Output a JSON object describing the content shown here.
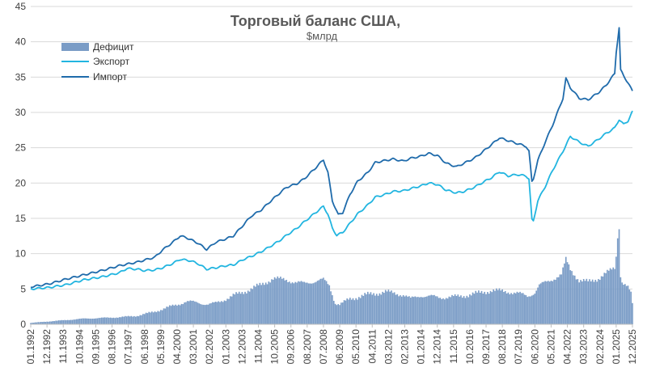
{
  "chart_data": {
    "type": "bar+line",
    "title": "Торговый баланс США,",
    "subtitle": "$млрд",
    "xlabel": "",
    "ylabel": "",
    "ylim": [
      0,
      45
    ],
    "y_ticks": [
      0,
      5,
      10,
      15,
      20,
      25,
      30,
      35,
      40,
      45
    ],
    "x_range": [
      "1992-01",
      "2025-12"
    ],
    "x_tick_labels": [
      "01.1992",
      "12.1992",
      "11.1993",
      "10.1994",
      "09.1995",
      "08.1996",
      "07.1997",
      "06.1998",
      "05.1999",
      "04.2000",
      "03.2001",
      "02.2002",
      "01.2003",
      "12.2003",
      "11.2004",
      "10.2005",
      "09.2006",
      "08.2007",
      "07.2008",
      "06.2009",
      "05.2010",
      "04.2011",
      "03.2012",
      "02.2013",
      "01.2014",
      "12.2014",
      "11.2015",
      "10.2016",
      "09.2017",
      "08.2018",
      "07.2019",
      "06.2020",
      "05.2021",
      "04.2022",
      "03.2023",
      "02.2024",
      "01.2025",
      "12.2025"
    ],
    "grid": "horizontal",
    "legend_position": "top-left",
    "colors": {
      "deficit": "#7a9cc6",
      "export": "#22b5e0",
      "import": "#1f6bab",
      "grid": "#d9d9d9",
      "axis": "#bfbfbf"
    },
    "series": [
      {
        "name": "Дефицит",
        "kind": "bar",
        "points": [
          [
            "1992-01",
            0.2
          ],
          [
            "1993-01",
            0.4
          ],
          [
            "1994-01",
            0.6
          ],
          [
            "1995-01",
            0.8
          ],
          [
            "1996-01",
            0.9
          ],
          [
            "1997-01",
            1.0
          ],
          [
            "1998-01",
            1.2
          ],
          [
            "1999-01",
            1.8
          ],
          [
            "2000-01",
            2.6
          ],
          [
            "2000-10",
            3.2
          ],
          [
            "2001-06",
            3.1
          ],
          [
            "2002-01",
            2.8
          ],
          [
            "2002-06",
            3.0
          ],
          [
            "2003-01",
            3.6
          ],
          [
            "2004-01",
            4.6
          ],
          [
            "2005-01",
            5.6
          ],
          [
            "2005-09",
            6.5
          ],
          [
            "2006-06",
            6.3
          ],
          [
            "2007-01",
            5.9
          ],
          [
            "2007-06",
            5.8
          ],
          [
            "2008-01",
            6.1
          ],
          [
            "2008-07",
            6.3
          ],
          [
            "2008-11",
            5.5
          ],
          [
            "2009-03",
            3.0
          ],
          [
            "2009-06",
            2.8
          ],
          [
            "2010-01",
            3.6
          ],
          [
            "2011-01",
            4.2
          ],
          [
            "2012-01",
            4.6
          ],
          [
            "2013-01",
            4.2
          ],
          [
            "2013-06",
            3.6
          ],
          [
            "2014-01",
            4.1
          ],
          [
            "2015-01",
            3.8
          ],
          [
            "2016-01",
            3.9
          ],
          [
            "2017-01",
            4.3
          ],
          [
            "2018-01",
            4.8
          ],
          [
            "2019-01",
            4.6
          ],
          [
            "2019-06",
            4.4
          ],
          [
            "2020-01",
            4.0
          ],
          [
            "2020-06",
            4.5
          ],
          [
            "2020-09",
            5.5
          ],
          [
            "2021-01",
            5.9
          ],
          [
            "2021-06",
            6.4
          ],
          [
            "2021-12",
            7.0
          ],
          [
            "2022-03",
            9.2
          ],
          [
            "2022-06",
            7.8
          ],
          [
            "2022-12",
            6.2
          ],
          [
            "2023-06",
            6.0
          ],
          [
            "2024-01",
            6.5
          ],
          [
            "2024-06",
            7.2
          ],
          [
            "2024-12",
            8.0
          ],
          [
            "2025-01",
            9.6
          ],
          [
            "2025-02",
            12.5
          ],
          [
            "2025-03",
            13.6
          ],
          [
            "2025-04",
            7.0
          ],
          [
            "2025-05",
            6.0
          ],
          [
            "2025-07",
            5.6
          ],
          [
            "2025-09",
            5.2
          ],
          [
            "2025-11",
            4.3
          ],
          [
            "2025-12",
            2.9
          ]
        ]
      },
      {
        "name": "Экспорт",
        "kind": "line",
        "points": [
          [
            "1992-01",
            5.0
          ],
          [
            "1993-01",
            5.2
          ],
          [
            "1994-01",
            5.6
          ],
          [
            "1995-01",
            6.3
          ],
          [
            "1996-01",
            6.7
          ],
          [
            "1997-01",
            7.3
          ],
          [
            "1997-06",
            7.9
          ],
          [
            "1998-01",
            7.8
          ],
          [
            "1998-06",
            7.6
          ],
          [
            "1999-01",
            7.7
          ],
          [
            "1999-06",
            8.0
          ],
          [
            "2000-01",
            8.6
          ],
          [
            "2000-06",
            9.2
          ],
          [
            "2001-01",
            9.0
          ],
          [
            "2001-06",
            8.6
          ],
          [
            "2001-12",
            7.8
          ],
          [
            "2002-06",
            8.0
          ],
          [
            "2003-01",
            8.3
          ],
          [
            "2003-06",
            8.4
          ],
          [
            "2004-01",
            9.2
          ],
          [
            "2004-06",
            9.6
          ],
          [
            "2005-01",
            10.3
          ],
          [
            "2005-06",
            10.9
          ],
          [
            "2006-01",
            11.8
          ],
          [
            "2006-06",
            12.6
          ],
          [
            "2007-01",
            13.6
          ],
          [
            "2007-06",
            14.5
          ],
          [
            "2008-01",
            15.7
          ],
          [
            "2008-07",
            16.7
          ],
          [
            "2008-10",
            15.6
          ],
          [
            "2009-01",
            13.6
          ],
          [
            "2009-04",
            12.6
          ],
          [
            "2009-08",
            13.0
          ],
          [
            "2010-01",
            14.3
          ],
          [
            "2010-06",
            15.6
          ],
          [
            "2011-01",
            16.9
          ],
          [
            "2011-06",
            18.0
          ],
          [
            "2012-01",
            18.4
          ],
          [
            "2012-06",
            18.8
          ],
          [
            "2013-01",
            18.9
          ],
          [
            "2013-06",
            19.2
          ],
          [
            "2014-01",
            19.6
          ],
          [
            "2014-06",
            20.0
          ],
          [
            "2014-12",
            19.8
          ],
          [
            "2015-06",
            19.0
          ],
          [
            "2016-01",
            18.6
          ],
          [
            "2016-06",
            18.8
          ],
          [
            "2017-01",
            19.4
          ],
          [
            "2017-06",
            20.0
          ],
          [
            "2018-01",
            20.8
          ],
          [
            "2018-06",
            21.6
          ],
          [
            "2018-12",
            21.0
          ],
          [
            "2019-06",
            21.2
          ],
          [
            "2019-12",
            21.0
          ],
          [
            "2020-02",
            20.6
          ],
          [
            "2020-04",
            14.8
          ],
          [
            "2020-05",
            14.6
          ],
          [
            "2020-08",
            17.5
          ],
          [
            "2021-01",
            19.5
          ],
          [
            "2021-06",
            21.8
          ],
          [
            "2022-01",
            24.5
          ],
          [
            "2022-06",
            26.6
          ],
          [
            "2022-12",
            25.8
          ],
          [
            "2023-06",
            25.2
          ],
          [
            "2024-01",
            26.2
          ],
          [
            "2024-06",
            27.0
          ],
          [
            "2024-12",
            27.8
          ],
          [
            "2025-03",
            29.0
          ],
          [
            "2025-06",
            28.3
          ],
          [
            "2025-09",
            28.8
          ],
          [
            "2025-12",
            30.1
          ]
        ]
      },
      {
        "name": "Импорт",
        "kind": "line",
        "points": [
          [
            "1992-01",
            5.3
          ],
          [
            "1993-01",
            5.7
          ],
          [
            "1994-01",
            6.4
          ],
          [
            "1995-01",
            7.0
          ],
          [
            "1996-01",
            7.6
          ],
          [
            "1997-01",
            8.3
          ],
          [
            "1998-01",
            8.8
          ],
          [
            "1999-01",
            9.5
          ],
          [
            "1999-06",
            10.5
          ],
          [
            "2000-01",
            11.6
          ],
          [
            "2000-06",
            12.5
          ],
          [
            "2000-10",
            12.3
          ],
          [
            "2001-06",
            11.5
          ],
          [
            "2001-12",
            10.6
          ],
          [
            "2002-06",
            11.6
          ],
          [
            "2003-01",
            12.1
          ],
          [
            "2003-06",
            12.5
          ],
          [
            "2004-01",
            14.1
          ],
          [
            "2004-06",
            15.3
          ],
          [
            "2005-01",
            16.2
          ],
          [
            "2005-06",
            17.2
          ],
          [
            "2006-01",
            18.5
          ],
          [
            "2006-06",
            19.4
          ],
          [
            "2007-01",
            19.9
          ],
          [
            "2007-06",
            20.6
          ],
          [
            "2008-01",
            22.0
          ],
          [
            "2008-07",
            23.3
          ],
          [
            "2008-10",
            21.5
          ],
          [
            "2009-01",
            17.5
          ],
          [
            "2009-05",
            15.5
          ],
          [
            "2009-08",
            15.8
          ],
          [
            "2010-01",
            18.4
          ],
          [
            "2010-06",
            20.2
          ],
          [
            "2011-01",
            21.5
          ],
          [
            "2011-06",
            22.9
          ],
          [
            "2012-01",
            23.2
          ],
          [
            "2012-06",
            23.4
          ],
          [
            "2013-01",
            23.1
          ],
          [
            "2013-06",
            23.5
          ],
          [
            "2014-01",
            23.8
          ],
          [
            "2014-06",
            24.2
          ],
          [
            "2014-12",
            23.9
          ],
          [
            "2015-06",
            22.8
          ],
          [
            "2016-01",
            22.3
          ],
          [
            "2016-06",
            22.8
          ],
          [
            "2017-01",
            23.5
          ],
          [
            "2017-06",
            24.3
          ],
          [
            "2018-01",
            25.5
          ],
          [
            "2018-06",
            26.4
          ],
          [
            "2018-12",
            26.0
          ],
          [
            "2019-06",
            25.6
          ],
          [
            "2019-12",
            25.2
          ],
          [
            "2020-02",
            24.5
          ],
          [
            "2020-04",
            20.2
          ],
          [
            "2020-05",
            20.6
          ],
          [
            "2020-08",
            23.2
          ],
          [
            "2021-01",
            25.8
          ],
          [
            "2021-06",
            28.2
          ],
          [
            "2022-01",
            32.0
          ],
          [
            "2022-03",
            34.8
          ],
          [
            "2022-06",
            33.5
          ],
          [
            "2022-12",
            32.0
          ],
          [
            "2023-06",
            31.8
          ],
          [
            "2024-01",
            32.8
          ],
          [
            "2024-06",
            33.8
          ],
          [
            "2024-12",
            35.5
          ],
          [
            "2025-01",
            38.5
          ],
          [
            "2025-03",
            42.0
          ],
          [
            "2025-04",
            36.0
          ],
          [
            "2025-06",
            35.2
          ],
          [
            "2025-09",
            34.2
          ],
          [
            "2025-12",
            33.0
          ]
        ]
      }
    ]
  }
}
